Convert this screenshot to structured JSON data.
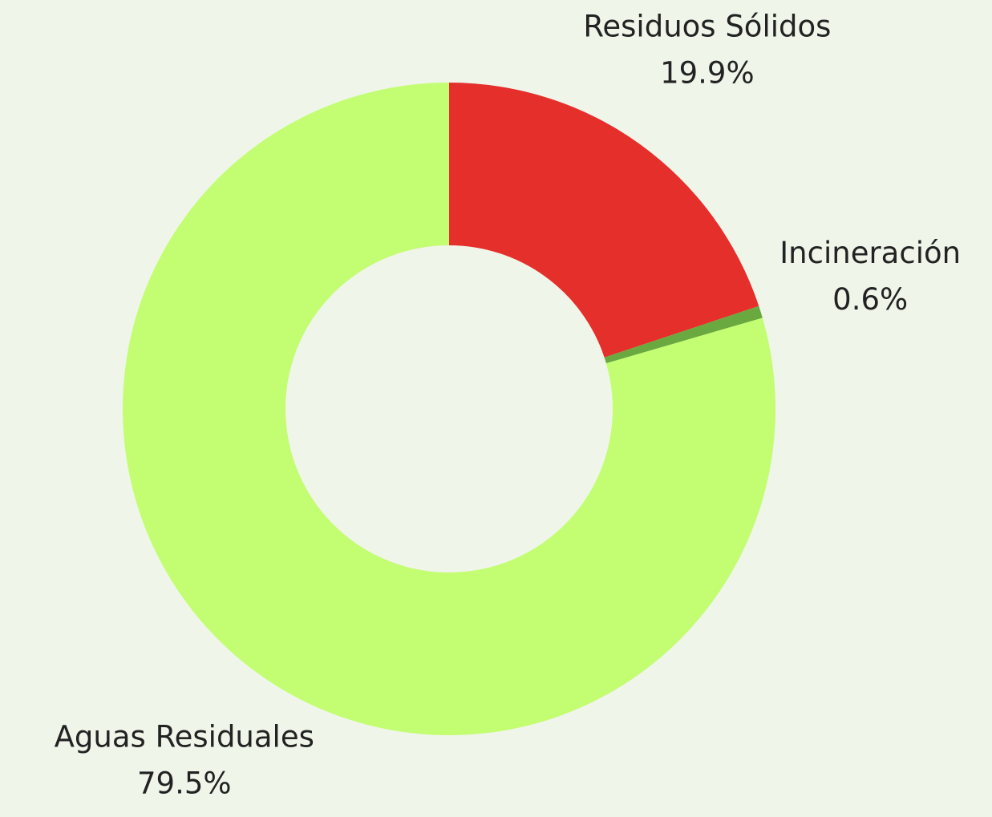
{
  "chart_data": {
    "type": "donut",
    "categories": [
      "Residuos Sólidos",
      "Incineración",
      "Aguas Residuales"
    ],
    "values": [
      19.9,
      0.6,
      79.5
    ],
    "value_labels": [
      "19.9%",
      "0.6%",
      "79.5%"
    ],
    "colors": [
      "#e52f2a",
      "#6aa840",
      "#c2fd72"
    ]
  }
}
